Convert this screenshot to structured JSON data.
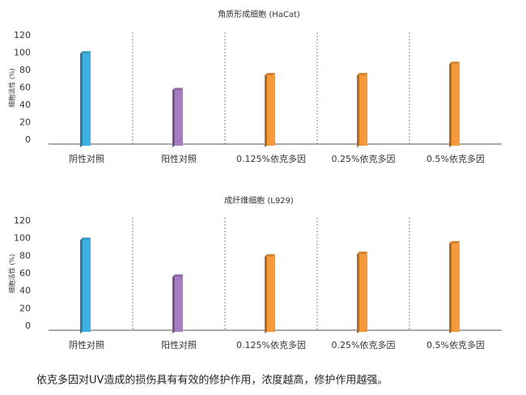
{
  "chart_data": [
    {
      "type": "bar",
      "title": "角质形成细胞 (HaCat)",
      "y_label": "细胞活性 (%)",
      "categories": [
        "阴性对照",
        "阳性对照",
        "0.125%依克多因",
        "0.25%依克多因",
        "0.5%依克多因"
      ],
      "values": [
        102,
        60,
        77,
        77,
        90
      ],
      "colors": [
        "#3fb0e4",
        "#a77cc0",
        "#f5993a",
        "#f5993a",
        "#f5993a"
      ],
      "ylim": [
        0,
        120
      ],
      "yticks": [
        0,
        20,
        40,
        60,
        80,
        100,
        120
      ]
    },
    {
      "type": "bar",
      "title": "成纤维细胞 (L929)",
      "y_label": "细胞活性 (%)",
      "categories": [
        "阴性对照",
        "阳性对照",
        "0.125%依克多因",
        "0.25%依克多因",
        "0.5%依克多因"
      ],
      "values": [
        101,
        59,
        82,
        85,
        97
      ],
      "colors": [
        "#3fb0e4",
        "#a77cc0",
        "#f5993a",
        "#f5993a",
        "#f5993a"
      ],
      "ylim": [
        0,
        120
      ],
      "yticks": [
        0,
        20,
        40,
        60,
        80,
        100,
        120
      ]
    }
  ],
  "caption": "依克多因对UV造成的损伤具有有效的修护作用，浓度越高，修护作用越强。"
}
